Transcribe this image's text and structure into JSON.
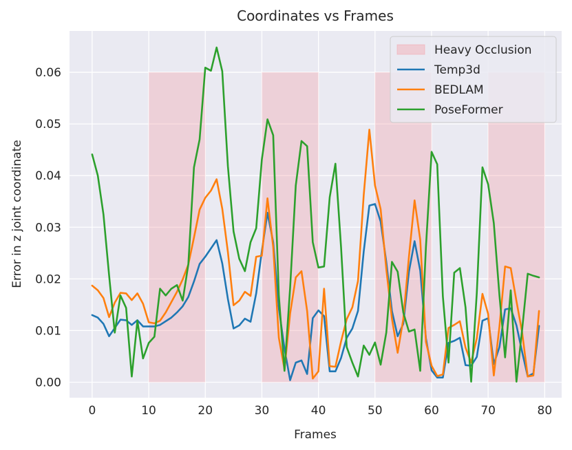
{
  "chart_data": {
    "type": "line",
    "title": "Coordinates vs Frames",
    "xlabel": "Frames",
    "ylabel": "Error in z joint coordinate",
    "xlim": [
      -4,
      83
    ],
    "ylim": [
      -0.003,
      0.068
    ],
    "xticks": [
      0,
      10,
      20,
      30,
      40,
      50,
      60,
      70,
      80
    ],
    "xtick_labels": [
      "0",
      "10",
      "20",
      "30",
      "40",
      "50",
      "60",
      "70",
      "80"
    ],
    "yticks": [
      0.0,
      0.01,
      0.02,
      0.03,
      0.04,
      0.05,
      0.06
    ],
    "ytick_labels": [
      "0.00",
      "0.01",
      "0.02",
      "0.03",
      "0.04",
      "0.05",
      "0.06"
    ],
    "grid": true,
    "legend_position": "top-right",
    "background": "#eaeaf2",
    "regions": {
      "name": "Heavy Occlusion",
      "color": "#f4a0a8",
      "spans": [
        [
          10,
          20
        ],
        [
          30,
          40
        ],
        [
          50,
          60
        ],
        [
          70,
          80
        ]
      ],
      "y_range": [
        0,
        0.06
      ]
    },
    "series": [
      {
        "name": "Temp3d",
        "color": "#1f77b4",
        "x": [
          0,
          1,
          2,
          3,
          4,
          5,
          6,
          7,
          8,
          9,
          10,
          11,
          12,
          13,
          14,
          15,
          16,
          17,
          18,
          19,
          20,
          21,
          22,
          23,
          24,
          25,
          26,
          27,
          28,
          29,
          30,
          31,
          32,
          33,
          34,
          35,
          36,
          37,
          38,
          39,
          40,
          41,
          42,
          43,
          44,
          45,
          46,
          47,
          48,
          49,
          50,
          51,
          52,
          53,
          54,
          55,
          56,
          57,
          58,
          59,
          60,
          61,
          62,
          63,
          64,
          65,
          66,
          67,
          68,
          69,
          70,
          71,
          72,
          73,
          74,
          75,
          76,
          77,
          78,
          79
        ],
        "values": [
          0.013,
          0.0125,
          0.0113,
          0.0089,
          0.0105,
          0.0121,
          0.012,
          0.0111,
          0.012,
          0.0108,
          0.0108,
          0.0108,
          0.0111,
          0.0118,
          0.0125,
          0.0135,
          0.0147,
          0.0165,
          0.0195,
          0.0229,
          0.0243,
          0.0259,
          0.0275,
          0.023,
          0.0161,
          0.0104,
          0.011,
          0.0123,
          0.0117,
          0.0172,
          0.0254,
          0.0328,
          0.0271,
          0.0143,
          0.0065,
          0.0004,
          0.0038,
          0.0042,
          0.0016,
          0.0124,
          0.0139,
          0.0128,
          0.0021,
          0.0021,
          0.0047,
          0.0086,
          0.0104,
          0.0138,
          0.0253,
          0.0342,
          0.0345,
          0.0311,
          0.0233,
          0.0138,
          0.0089,
          0.0113,
          0.0214,
          0.0273,
          0.0216,
          0.0085,
          0.0023,
          0.0009,
          0.0009,
          0.0076,
          0.008,
          0.0086,
          0.0033,
          0.0032,
          0.0049,
          0.0119,
          0.0124,
          0.0035,
          0.0068,
          0.0141,
          0.0143,
          0.011,
          0.0059,
          0.0011,
          0.0017,
          0.0109
        ]
      },
      {
        "name": "BEDLAM",
        "color": "#ff7f0e",
        "x": [
          0,
          1,
          2,
          3,
          4,
          5,
          6,
          7,
          8,
          9,
          10,
          11,
          12,
          13,
          14,
          15,
          16,
          17,
          18,
          19,
          20,
          21,
          22,
          23,
          24,
          25,
          26,
          27,
          28,
          29,
          30,
          31,
          32,
          33,
          34,
          35,
          36,
          37,
          38,
          39,
          40,
          41,
          42,
          43,
          44,
          45,
          46,
          47,
          48,
          49,
          50,
          51,
          52,
          53,
          54,
          55,
          56,
          57,
          58,
          59,
          60,
          61,
          62,
          63,
          64,
          65,
          66,
          67,
          68,
          69,
          70,
          71,
          72,
          73,
          74,
          75,
          76,
          77,
          78,
          79
        ],
        "values": [
          0.0187,
          0.0178,
          0.0163,
          0.0126,
          0.0154,
          0.0173,
          0.0172,
          0.0159,
          0.0172,
          0.0152,
          0.0116,
          0.0114,
          0.0119,
          0.0135,
          0.0155,
          0.0175,
          0.0199,
          0.0228,
          0.028,
          0.0334,
          0.0357,
          0.0371,
          0.0393,
          0.0336,
          0.0252,
          0.0149,
          0.0158,
          0.0175,
          0.0167,
          0.0243,
          0.0245,
          0.0356,
          0.0262,
          0.0086,
          0.0025,
          0.0133,
          0.0203,
          0.0215,
          0.0138,
          0.0007,
          0.0021,
          0.0181,
          0.0031,
          0.003,
          0.0079,
          0.0122,
          0.0145,
          0.0196,
          0.0362,
          0.0489,
          0.0381,
          0.0335,
          0.0219,
          0.0123,
          0.0057,
          0.0122,
          0.0243,
          0.0352,
          0.0276,
          0.0078,
          0.0032,
          0.0012,
          0.0015,
          0.0105,
          0.0111,
          0.0118,
          0.0067,
          0.0038,
          0.0085,
          0.0171,
          0.0132,
          0.0013,
          0.0108,
          0.0224,
          0.0221,
          0.0157,
          0.0097,
          0.0011,
          0.0013,
          0.0138
        ]
      },
      {
        "name": "PoseFormer",
        "color": "#2ca02c",
        "x": [
          0,
          1,
          2,
          3,
          4,
          5,
          6,
          7,
          8,
          9,
          10,
          11,
          12,
          13,
          14,
          15,
          16,
          17,
          18,
          19,
          20,
          21,
          22,
          23,
          24,
          25,
          26,
          27,
          28,
          29,
          30,
          31,
          32,
          33,
          34,
          35,
          36,
          37,
          38,
          39,
          40,
          41,
          42,
          43,
          44,
          45,
          46,
          47,
          48,
          49,
          50,
          51,
          52,
          53,
          54,
          55,
          56,
          57,
          58,
          59,
          60,
          61,
          62,
          63,
          64,
          65,
          66,
          67,
          68,
          69,
          70,
          71,
          72,
          73,
          74,
          75,
          76,
          77,
          78,
          79
        ],
        "values": [
          0.0441,
          0.04,
          0.0325,
          0.0207,
          0.0096,
          0.0168,
          0.0144,
          0.0011,
          0.0119,
          0.0046,
          0.0076,
          0.0088,
          0.0181,
          0.0168,
          0.0181,
          0.0188,
          0.0158,
          0.0228,
          0.0416,
          0.047,
          0.0609,
          0.0603,
          0.0648,
          0.0602,
          0.0418,
          0.0292,
          0.0239,
          0.0215,
          0.0271,
          0.0298,
          0.0431,
          0.0509,
          0.0478,
          0.0168,
          0.0022,
          0.0183,
          0.0381,
          0.0467,
          0.0457,
          0.0271,
          0.0222,
          0.0224,
          0.0358,
          0.0423,
          0.0261,
          0.0068,
          0.0038,
          0.0011,
          0.0071,
          0.0053,
          0.0077,
          0.0034,
          0.0096,
          0.0233,
          0.0214,
          0.0135,
          0.0098,
          0.0102,
          0.0022,
          0.0262,
          0.0446,
          0.0422,
          0.0166,
          0.0038,
          0.0212,
          0.0221,
          0.0145,
          0.0001,
          0.0173,
          0.0416,
          0.0383,
          0.0308,
          0.0168,
          0.0048,
          0.0178,
          0.0001,
          0.0101,
          0.021,
          0.0206,
          0.0203
        ]
      }
    ]
  }
}
